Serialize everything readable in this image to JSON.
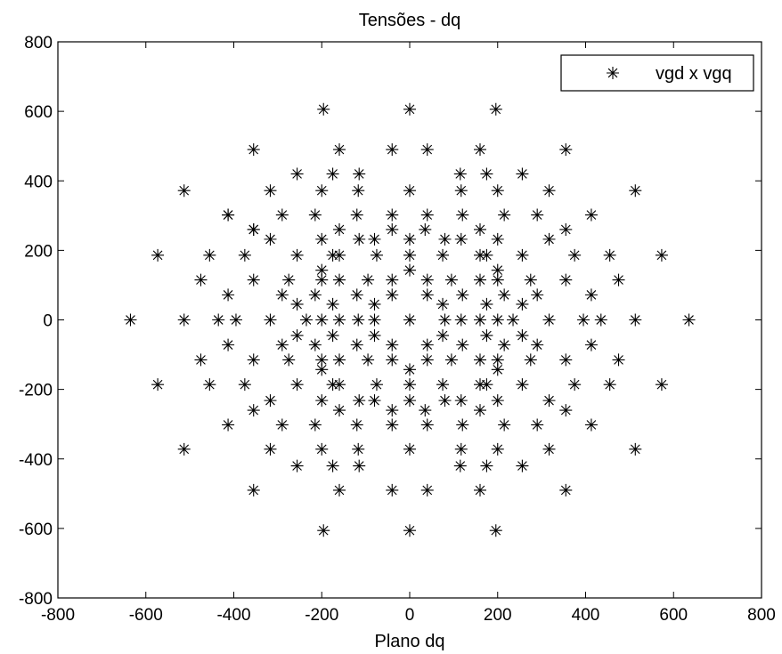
{
  "chart_data": {
    "type": "scatter",
    "title": "Tensões - dq",
    "xlabel": "Plano dq",
    "ylabel": "",
    "xlim": [
      -800,
      800
    ],
    "ylim": [
      -800,
      800
    ],
    "xticks": [
      "-800",
      "-600",
      "-400",
      "-200",
      "0",
      "200",
      "400",
      "600",
      "800"
    ],
    "yticks": [
      "-800",
      "-600",
      "-400",
      "-200",
      "0",
      "200",
      "400",
      "600",
      "800"
    ],
    "grid": false,
    "legend_position": "top-right",
    "marker": "asterisk",
    "series": [
      {
        "name": "vgd x vgq",
        "color": "#000000",
        "points": [
          [
            -196,
            606
          ],
          [
            0,
            606
          ],
          [
            196,
            606
          ],
          [
            -355,
            490
          ],
          [
            -160,
            490
          ],
          [
            -40,
            490
          ],
          [
            40,
            490
          ],
          [
            160,
            490
          ],
          [
            355,
            490
          ],
          [
            -256,
            420
          ],
          [
            -115,
            420
          ],
          [
            -175,
            420
          ],
          [
            175,
            420
          ],
          [
            115,
            420
          ],
          [
            256,
            420
          ],
          [
            -513,
            372
          ],
          [
            -413,
            302
          ],
          [
            -355,
            260
          ],
          [
            -317,
            372
          ],
          [
            -200,
            372
          ],
          [
            -117,
            372
          ],
          [
            0,
            372
          ],
          [
            117,
            372
          ],
          [
            200,
            372
          ],
          [
            317,
            372
          ],
          [
            513,
            372
          ],
          [
            -413,
            302
          ],
          [
            -290,
            302
          ],
          [
            -215,
            302
          ],
          [
            -120,
            302
          ],
          [
            -40,
            302
          ],
          [
            40,
            302
          ],
          [
            120,
            302
          ],
          [
            215,
            302
          ],
          [
            290,
            302
          ],
          [
            413,
            302
          ],
          [
            -355,
            260
          ],
          [
            -160,
            260
          ],
          [
            -40,
            260
          ],
          [
            35,
            260
          ],
          [
            160,
            260
          ],
          [
            355,
            260
          ],
          [
            -317,
            232
          ],
          [
            -200,
            232
          ],
          [
            -115,
            232
          ],
          [
            -80,
            232
          ],
          [
            0,
            232
          ],
          [
            80,
            232
          ],
          [
            117,
            232
          ],
          [
            200,
            232
          ],
          [
            317,
            232
          ],
          [
            -573,
            186
          ],
          [
            -455,
            186
          ],
          [
            -375,
            186
          ],
          [
            -256,
            186
          ],
          [
            -160,
            186
          ],
          [
            -75,
            186
          ],
          [
            0,
            186
          ],
          [
            75,
            186
          ],
          [
            160,
            186
          ],
          [
            256,
            186
          ],
          [
            375,
            186
          ],
          [
            455,
            186
          ],
          [
            573,
            186
          ],
          [
            -200,
            143
          ],
          [
            -175,
            186
          ],
          [
            0,
            143
          ],
          [
            175,
            186
          ],
          [
            200,
            143
          ],
          [
            -475,
            115
          ],
          [
            -355,
            115
          ],
          [
            -275,
            115
          ],
          [
            -200,
            115
          ],
          [
            -160,
            115
          ],
          [
            -95,
            115
          ],
          [
            -40,
            115
          ],
          [
            40,
            115
          ],
          [
            95,
            115
          ],
          [
            160,
            115
          ],
          [
            200,
            115
          ],
          [
            275,
            115
          ],
          [
            355,
            115
          ],
          [
            475,
            115
          ],
          [
            -413,
            72
          ],
          [
            -290,
            72
          ],
          [
            -215,
            72
          ],
          [
            -120,
            72
          ],
          [
            -40,
            72
          ],
          [
            40,
            72
          ],
          [
            120,
            72
          ],
          [
            215,
            72
          ],
          [
            290,
            72
          ],
          [
            413,
            72
          ],
          [
            -256,
            45
          ],
          [
            -175,
            45
          ],
          [
            -80,
            45
          ],
          [
            75,
            45
          ],
          [
            175,
            45
          ],
          [
            256,
            45
          ],
          [
            -635,
            0
          ],
          [
            -513,
            0
          ],
          [
            -435,
            0
          ],
          [
            -395,
            0
          ],
          [
            -317,
            0
          ],
          [
            -235,
            0
          ],
          [
            -200,
            0
          ],
          [
            -160,
            0
          ],
          [
            -117,
            0
          ],
          [
            -80,
            0
          ],
          [
            0,
            0
          ],
          [
            80,
            0
          ],
          [
            117,
            0
          ],
          [
            160,
            0
          ],
          [
            200,
            0
          ],
          [
            235,
            0
          ],
          [
            317,
            0
          ],
          [
            395,
            0
          ],
          [
            435,
            0
          ],
          [
            513,
            0
          ],
          [
            635,
            0
          ],
          [
            -256,
            -45
          ],
          [
            -175,
            -45
          ],
          [
            -80,
            -45
          ],
          [
            75,
            -45
          ],
          [
            175,
            -45
          ],
          [
            256,
            -45
          ],
          [
            -413,
            -72
          ],
          [
            -290,
            -72
          ],
          [
            -215,
            -72
          ],
          [
            -120,
            -72
          ],
          [
            -40,
            -72
          ],
          [
            40,
            -72
          ],
          [
            120,
            -72
          ],
          [
            215,
            -72
          ],
          [
            290,
            -72
          ],
          [
            413,
            -72
          ],
          [
            -475,
            -115
          ],
          [
            -355,
            -115
          ],
          [
            -275,
            -115
          ],
          [
            -200,
            -115
          ],
          [
            -160,
            -115
          ],
          [
            -95,
            -115
          ],
          [
            -40,
            -115
          ],
          [
            40,
            -115
          ],
          [
            95,
            -115
          ],
          [
            160,
            -115
          ],
          [
            200,
            -115
          ],
          [
            275,
            -115
          ],
          [
            355,
            -115
          ],
          [
            475,
            -115
          ],
          [
            -200,
            -143
          ],
          [
            0,
            -143
          ],
          [
            200,
            -143
          ],
          [
            -573,
            -186
          ],
          [
            -455,
            -186
          ],
          [
            -375,
            -186
          ],
          [
            -256,
            -186
          ],
          [
            -175,
            -186
          ],
          [
            -160,
            -186
          ],
          [
            -75,
            -186
          ],
          [
            0,
            -186
          ],
          [
            75,
            -186
          ],
          [
            160,
            -186
          ],
          [
            175,
            -186
          ],
          [
            256,
            -186
          ],
          [
            375,
            -186
          ],
          [
            455,
            -186
          ],
          [
            573,
            -186
          ],
          [
            -317,
            -232
          ],
          [
            -200,
            -232
          ],
          [
            -115,
            -232
          ],
          [
            -80,
            -232
          ],
          [
            0,
            -232
          ],
          [
            80,
            -232
          ],
          [
            117,
            -232
          ],
          [
            200,
            -232
          ],
          [
            317,
            -232
          ],
          [
            -355,
            -260
          ],
          [
            -160,
            -260
          ],
          [
            -40,
            -260
          ],
          [
            35,
            -260
          ],
          [
            160,
            -260
          ],
          [
            355,
            -260
          ],
          [
            -413,
            -302
          ],
          [
            -290,
            -302
          ],
          [
            -215,
            -302
          ],
          [
            -120,
            -302
          ],
          [
            -40,
            -302
          ],
          [
            40,
            -302
          ],
          [
            120,
            -302
          ],
          [
            215,
            -302
          ],
          [
            290,
            -302
          ],
          [
            413,
            -302
          ],
          [
            -513,
            -372
          ],
          [
            -317,
            -372
          ],
          [
            -200,
            -372
          ],
          [
            -117,
            -372
          ],
          [
            0,
            -372
          ],
          [
            117,
            -372
          ],
          [
            200,
            -372
          ],
          [
            317,
            -372
          ],
          [
            513,
            -372
          ],
          [
            -256,
            -420
          ],
          [
            -175,
            -420
          ],
          [
            -115,
            -420
          ],
          [
            115,
            -420
          ],
          [
            175,
            -420
          ],
          [
            256,
            -420
          ],
          [
            -355,
            -490
          ],
          [
            -160,
            -490
          ],
          [
            -40,
            -490
          ],
          [
            40,
            -490
          ],
          [
            160,
            -490
          ],
          [
            355,
            -490
          ],
          [
            -196,
            -606
          ],
          [
            0,
            -606
          ],
          [
            196,
            -606
          ]
        ]
      }
    ]
  }
}
